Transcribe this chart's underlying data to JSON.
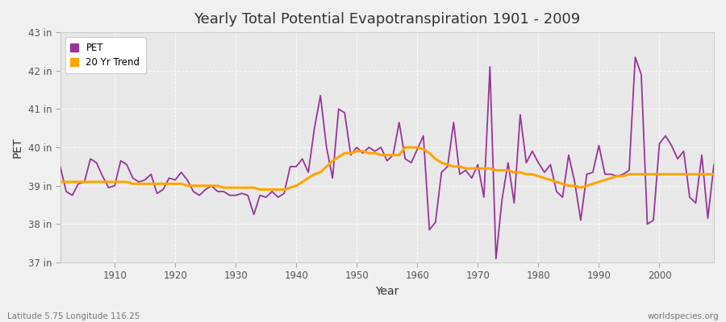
{
  "title": "Yearly Total Potential Evapotranspiration 1901 - 2009",
  "xlabel": "Year",
  "ylabel": "PET",
  "subtitle_left": "Latitude 5.75 Longitude 116.25",
  "subtitle_right": "worldspecies.org",
  "ylim": [
    37,
    43
  ],
  "yticks": [
    37,
    38,
    39,
    40,
    41,
    42,
    43
  ],
  "ytick_labels": [
    "37 in",
    "38 in",
    "39 in",
    "40 in",
    "41 in",
    "42 in",
    "43 in"
  ],
  "xlim": [
    1901,
    2009
  ],
  "pet_color": "#993399",
  "trend_color": "#FFA500",
  "fig_bg_color": "#f0f0f0",
  "plot_bg_color": "#e8e8e8",
  "legend_labels": [
    "PET",
    "20 Yr Trend"
  ],
  "years": [
    1901,
    1902,
    1903,
    1904,
    1905,
    1906,
    1907,
    1908,
    1909,
    1910,
    1911,
    1912,
    1913,
    1914,
    1915,
    1916,
    1917,
    1918,
    1919,
    1920,
    1921,
    1922,
    1923,
    1924,
    1925,
    1926,
    1927,
    1928,
    1929,
    1930,
    1931,
    1932,
    1933,
    1934,
    1935,
    1936,
    1937,
    1938,
    1939,
    1940,
    1941,
    1942,
    1943,
    1944,
    1945,
    1946,
    1947,
    1948,
    1949,
    1950,
    1951,
    1952,
    1953,
    1954,
    1955,
    1956,
    1957,
    1958,
    1959,
    1960,
    1961,
    1962,
    1963,
    1964,
    1965,
    1966,
    1967,
    1968,
    1969,
    1970,
    1971,
    1972,
    1973,
    1974,
    1975,
    1976,
    1977,
    1978,
    1979,
    1980,
    1981,
    1982,
    1983,
    1984,
    1985,
    1986,
    1987,
    1988,
    1989,
    1990,
    1991,
    1992,
    1993,
    1994,
    1995,
    1996,
    1997,
    1998,
    1999,
    2000,
    2001,
    2002,
    2003,
    2004,
    2005,
    2006,
    2007,
    2008,
    2009
  ],
  "pet_values": [
    39.5,
    38.85,
    38.75,
    39.05,
    39.1,
    39.7,
    39.6,
    39.25,
    38.95,
    39.0,
    39.65,
    39.55,
    39.2,
    39.1,
    39.15,
    39.3,
    38.8,
    38.9,
    39.2,
    39.15,
    39.35,
    39.15,
    38.85,
    38.75,
    38.9,
    39.0,
    38.85,
    38.85,
    38.75,
    38.75,
    38.8,
    38.75,
    38.25,
    38.75,
    38.7,
    38.85,
    38.7,
    38.8,
    39.5,
    39.5,
    39.7,
    39.35,
    40.5,
    41.35,
    40.0,
    39.2,
    41.0,
    40.9,
    39.8,
    40.0,
    39.85,
    40.0,
    39.9,
    40.0,
    39.65,
    39.8,
    40.65,
    39.7,
    39.6,
    39.95,
    40.3,
    37.85,
    38.05,
    39.35,
    39.5,
    40.65,
    39.3,
    39.4,
    39.2,
    39.55,
    38.7,
    42.1,
    37.1,
    38.65,
    39.6,
    38.55,
    40.85,
    39.6,
    39.9,
    39.6,
    39.35,
    39.55,
    38.85,
    38.7,
    39.8,
    39.1,
    38.1,
    39.3,
    39.35,
    40.05,
    39.3,
    39.3,
    39.25,
    39.3,
    39.4,
    42.35,
    41.9,
    38.0,
    38.1,
    40.1,
    40.3,
    40.05,
    39.7,
    39.9,
    38.7,
    38.55,
    39.8,
    38.15,
    39.55
  ],
  "trend_years": [
    1901,
    1902,
    1903,
    1904,
    1905,
    1906,
    1907,
    1908,
    1909,
    1910,
    1911,
    1912,
    1913,
    1914,
    1915,
    1916,
    1917,
    1918,
    1919,
    1920,
    1921,
    1922,
    1923,
    1924,
    1925,
    1926,
    1927,
    1928,
    1929,
    1930,
    1931,
    1932,
    1933,
    1934,
    1935,
    1936,
    1937,
    1938,
    1939,
    1940,
    1941,
    1942,
    1943,
    1944,
    1945,
    1946,
    1947,
    1948,
    1949,
    1950,
    1951,
    1952,
    1953,
    1954,
    1955,
    1956,
    1957,
    1958,
    1959,
    1960,
    1961,
    1962,
    1963,
    1964,
    1965,
    1966,
    1967,
    1968,
    1969,
    1970,
    1971,
    1972,
    1973,
    1974,
    1975,
    1976,
    1977,
    1978,
    1979,
    1980,
    1981,
    1982,
    1983,
    1984,
    1985,
    1986,
    1987,
    1988,
    1989,
    1990,
    1991,
    1992,
    1993,
    1994,
    1995,
    1996,
    1997,
    1998,
    1999,
    2000,
    2001,
    2002,
    2003,
    2004,
    2005,
    2006,
    2007,
    2008,
    2009
  ],
  "trend_values": [
    39.1,
    39.1,
    39.1,
    39.1,
    39.1,
    39.1,
    39.1,
    39.1,
    39.1,
    39.1,
    39.1,
    39.1,
    39.05,
    39.05,
    39.05,
    39.05,
    39.05,
    39.05,
    39.05,
    39.05,
    39.05,
    39.0,
    39.0,
    39.0,
    39.0,
    39.0,
    39.0,
    38.95,
    38.95,
    38.95,
    38.95,
    38.95,
    38.95,
    38.9,
    38.9,
    38.9,
    38.9,
    38.9,
    38.95,
    39.0,
    39.1,
    39.2,
    39.3,
    39.35,
    39.5,
    39.65,
    39.75,
    39.85,
    39.85,
    39.9,
    39.9,
    39.85,
    39.85,
    39.8,
    39.8,
    39.8,
    39.8,
    40.0,
    40.0,
    40.0,
    39.95,
    39.85,
    39.7,
    39.6,
    39.55,
    39.5,
    39.5,
    39.45,
    39.45,
    39.45,
    39.45,
    39.45,
    39.4,
    39.4,
    39.4,
    39.35,
    39.35,
    39.3,
    39.3,
    39.25,
    39.2,
    39.15,
    39.1,
    39.05,
    39.0,
    39.0,
    38.95,
    39.0,
    39.05,
    39.1,
    39.15,
    39.2,
    39.25,
    39.25,
    39.3,
    39.3,
    39.3,
    39.3,
    39.3,
    39.3,
    39.3,
    39.3,
    39.3,
    39.3,
    39.3,
    39.3,
    39.3,
    39.3,
    39.3
  ]
}
